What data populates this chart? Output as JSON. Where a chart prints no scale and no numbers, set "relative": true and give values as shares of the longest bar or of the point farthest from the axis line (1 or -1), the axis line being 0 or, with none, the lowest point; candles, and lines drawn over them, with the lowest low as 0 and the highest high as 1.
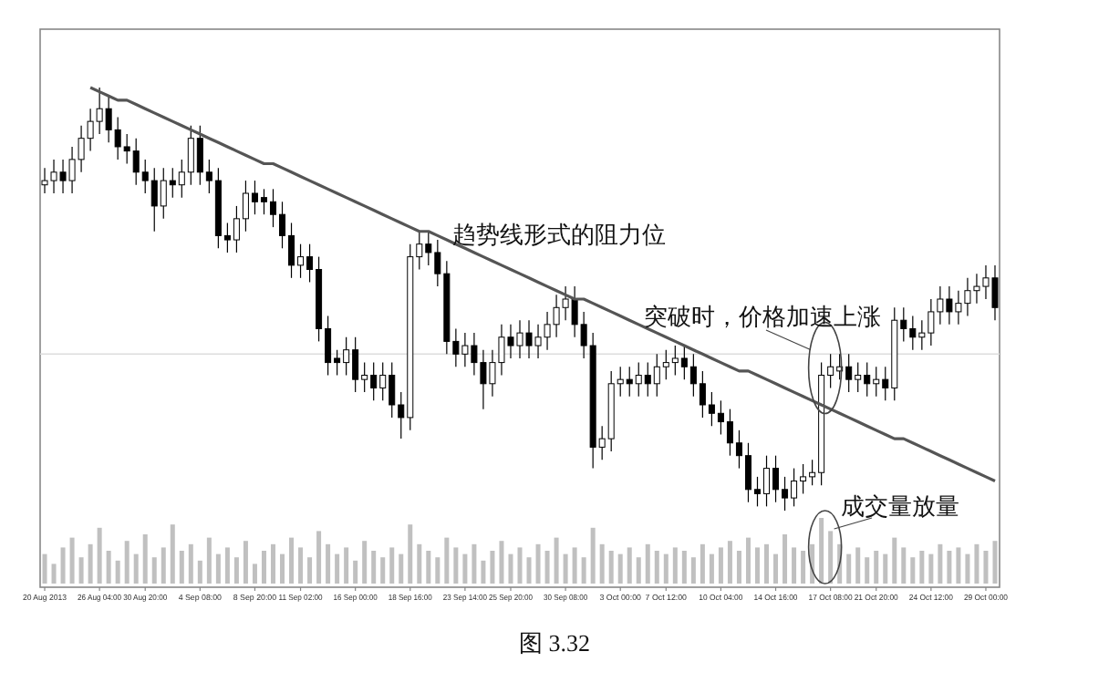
{
  "chart_data": [
    {
      "type": "candlestick",
      "relative": true,
      "grid": false,
      "categories": [
        null,
        null,
        null,
        null,
        null,
        null,
        null,
        null,
        null,
        null,
        null,
        null,
        null,
        null,
        null,
        null,
        null,
        null,
        null,
        null,
        null,
        null,
        null,
        null,
        null,
        null,
        null,
        null,
        null,
        null,
        null,
        null,
        null,
        null,
        null,
        null,
        null,
        null,
        null,
        null,
        null,
        null,
        null,
        null,
        null,
        null,
        null,
        null,
        null,
        null,
        null,
        null,
        null,
        null,
        null,
        null,
        null,
        null,
        null,
        null,
        null,
        null,
        null,
        null,
        null,
        null,
        null,
        null,
        null,
        null,
        null,
        null,
        null,
        null,
        null,
        null,
        null,
        null,
        null,
        null,
        null,
        null,
        null,
        null,
        null,
        null,
        null,
        null,
        null,
        null,
        null,
        null,
        null,
        null,
        null,
        null,
        null,
        null,
        null,
        null,
        null,
        null,
        null,
        null,
        null
      ],
      "series": [
        {
          "type": "candlestick",
          "color": "#000000",
          "ohlc": [
            [
              0.77,
              0.81,
              0.75,
              0.78
            ],
            [
              0.78,
              0.83,
              0.75,
              0.8
            ],
            [
              0.8,
              0.83,
              0.75,
              0.78
            ],
            [
              0.78,
              0.86,
              0.75,
              0.83
            ],
            [
              0.83,
              0.91,
              0.8,
              0.88
            ],
            [
              0.88,
              0.95,
              0.85,
              0.92
            ],
            [
              0.92,
              1.0,
              0.89,
              0.95
            ],
            [
              0.95,
              0.98,
              0.87,
              0.9
            ],
            [
              0.9,
              0.93,
              0.83,
              0.86
            ],
            [
              0.86,
              0.89,
              0.82,
              0.85
            ],
            [
              0.85,
              0.88,
              0.77,
              0.8
            ],
            [
              0.8,
              0.83,
              0.75,
              0.78
            ],
            [
              0.78,
              0.81,
              0.66,
              0.72
            ],
            [
              0.72,
              0.81,
              0.69,
              0.78
            ],
            [
              0.78,
              0.81,
              0.74,
              0.77
            ],
            [
              0.77,
              0.83,
              0.74,
              0.8
            ],
            [
              0.8,
              0.91,
              0.77,
              0.88
            ],
            [
              0.88,
              0.91,
              0.77,
              0.8
            ],
            [
              0.8,
              0.83,
              0.75,
              0.78
            ],
            [
              0.78,
              0.81,
              0.62,
              0.65
            ],
            [
              0.65,
              0.68,
              0.61,
              0.64
            ],
            [
              0.64,
              0.72,
              0.61,
              0.69
            ],
            [
              0.69,
              0.78,
              0.66,
              0.75
            ],
            [
              0.75,
              0.78,
              0.7,
              0.73
            ],
            [
              0.74,
              0.76,
              0.7,
              0.73
            ],
            [
              0.73,
              0.76,
              0.67,
              0.7
            ],
            [
              0.7,
              0.73,
              0.62,
              0.65
            ],
            [
              0.65,
              0.68,
              0.55,
              0.58
            ],
            [
              0.58,
              0.63,
              0.55,
              0.6
            ],
            [
              0.6,
              0.63,
              0.54,
              0.57
            ],
            [
              0.57,
              0.6,
              0.4,
              0.43
            ],
            [
              0.43,
              0.46,
              0.32,
              0.35
            ],
            [
              0.36,
              0.38,
              0.32,
              0.35
            ],
            [
              0.35,
              0.41,
              0.32,
              0.38
            ],
            [
              0.38,
              0.41,
              0.28,
              0.31
            ],
            [
              0.31,
              0.35,
              0.28,
              0.32
            ],
            [
              0.32,
              0.35,
              0.26,
              0.29
            ],
            [
              0.29,
              0.35,
              0.26,
              0.32
            ],
            [
              0.32,
              0.35,
              0.22,
              0.25
            ],
            [
              0.25,
              0.28,
              0.17,
              0.22
            ],
            [
              0.22,
              0.63,
              0.19,
              0.6
            ],
            [
              0.6,
              0.66,
              0.57,
              0.63
            ],
            [
              0.63,
              0.66,
              0.58,
              0.61
            ],
            [
              0.61,
              0.64,
              0.53,
              0.56
            ],
            [
              0.56,
              0.59,
              0.37,
              0.4
            ],
            [
              0.4,
              0.43,
              0.34,
              0.37
            ],
            [
              0.37,
              0.42,
              0.34,
              0.39
            ],
            [
              0.39,
              0.42,
              0.32,
              0.35
            ],
            [
              0.35,
              0.38,
              0.24,
              0.3
            ],
            [
              0.3,
              0.38,
              0.27,
              0.35
            ],
            [
              0.35,
              0.44,
              0.32,
              0.41
            ],
            [
              0.41,
              0.44,
              0.36,
              0.39
            ],
            [
              0.39,
              0.45,
              0.36,
              0.42
            ],
            [
              0.42,
              0.45,
              0.36,
              0.39
            ],
            [
              0.39,
              0.44,
              0.36,
              0.41
            ],
            [
              0.41,
              0.47,
              0.38,
              0.44
            ],
            [
              0.44,
              0.51,
              0.41,
              0.48
            ],
            [
              0.48,
              0.53,
              0.45,
              0.5
            ],
            [
              0.5,
              0.53,
              0.41,
              0.44
            ],
            [
              0.44,
              0.47,
              0.36,
              0.39
            ],
            [
              0.39,
              0.42,
              0.1,
              0.15
            ],
            [
              0.15,
              0.2,
              0.12,
              0.17
            ],
            [
              0.17,
              0.33,
              0.14,
              0.3
            ],
            [
              0.3,
              0.34,
              0.27,
              0.31
            ],
            [
              0.31,
              0.34,
              0.27,
              0.3
            ],
            [
              0.3,
              0.35,
              0.27,
              0.32
            ],
            [
              0.32,
              0.35,
              0.27,
              0.3
            ],
            [
              0.3,
              0.37,
              0.27,
              0.34
            ],
            [
              0.34,
              0.38,
              0.31,
              0.35
            ],
            [
              0.35,
              0.39,
              0.32,
              0.36
            ],
            [
              0.36,
              0.39,
              0.31,
              0.34
            ],
            [
              0.34,
              0.37,
              0.27,
              0.3
            ],
            [
              0.3,
              0.33,
              0.22,
              0.25
            ],
            [
              0.25,
              0.28,
              0.2,
              0.23
            ],
            [
              0.23,
              0.26,
              0.18,
              0.21
            ],
            [
              0.21,
              0.24,
              0.13,
              0.16
            ],
            [
              0.16,
              0.19,
              0.1,
              0.13
            ],
            [
              0.13,
              0.16,
              0.02,
              0.05
            ],
            [
              0.05,
              0.08,
              0.01,
              0.04
            ],
            [
              0.04,
              0.13,
              0.01,
              0.1
            ],
            [
              0.1,
              0.13,
              0.02,
              0.05
            ],
            [
              0.05,
              0.08,
              0.0,
              0.03
            ],
            [
              0.03,
              0.1,
              0.01,
              0.07
            ],
            [
              0.07,
              0.11,
              0.04,
              0.08
            ],
            [
              0.08,
              0.12,
              0.06,
              0.09
            ],
            [
              0.09,
              0.35,
              0.06,
              0.32
            ],
            [
              0.32,
              0.37,
              0.29,
              0.34
            ],
            [
              0.33,
              0.37,
              0.31,
              0.34
            ],
            [
              0.34,
              0.37,
              0.28,
              0.31
            ],
            [
              0.31,
              0.35,
              0.28,
              0.32
            ],
            [
              0.32,
              0.35,
              0.27,
              0.3
            ],
            [
              0.3,
              0.34,
              0.27,
              0.31
            ],
            [
              0.31,
              0.34,
              0.26,
              0.29
            ],
            [
              0.29,
              0.48,
              0.26,
              0.45
            ],
            [
              0.45,
              0.48,
              0.4,
              0.43
            ],
            [
              0.43,
              0.46,
              0.38,
              0.41
            ],
            [
              0.41,
              0.45,
              0.38,
              0.42
            ],
            [
              0.42,
              0.5,
              0.39,
              0.47
            ],
            [
              0.47,
              0.53,
              0.44,
              0.5
            ],
            [
              0.5,
              0.53,
              0.44,
              0.47
            ],
            [
              0.47,
              0.52,
              0.44,
              0.49
            ],
            [
              0.49,
              0.55,
              0.46,
              0.52
            ],
            [
              0.52,
              0.56,
              0.49,
              0.53
            ],
            [
              0.53,
              0.58,
              0.5,
              0.55
            ],
            [
              0.55,
              0.58,
              0.45,
              0.48
            ]
          ]
        },
        {
          "type": "line",
          "color": "#555555",
          "values": [
            null,
            null,
            null,
            null,
            null,
            1.0,
            0.99,
            0.98,
            0.97,
            0.97,
            0.96,
            0.95,
            0.94,
            0.93,
            0.92,
            0.91,
            0.9,
            0.89,
            0.88,
            0.87,
            0.86,
            0.85,
            0.84,
            0.83,
            0.82,
            0.82,
            0.81,
            0.8,
            0.79,
            0.78,
            0.77,
            0.76,
            0.75,
            0.74,
            0.73,
            0.72,
            0.71,
            0.7,
            0.69,
            0.68,
            0.67,
            0.66,
            0.66,
            0.65,
            0.64,
            0.63,
            0.62,
            0.61,
            0.6,
            0.59,
            0.58,
            0.57,
            0.56,
            0.55,
            0.54,
            0.53,
            0.52,
            0.51,
            0.5,
            0.5,
            0.49,
            0.48,
            0.47,
            0.46,
            0.45,
            0.44,
            0.43,
            0.42,
            0.41,
            0.4,
            0.39,
            0.38,
            0.37,
            0.36,
            0.35,
            0.34,
            0.33,
            0.33,
            0.32,
            0.31,
            0.3,
            0.29,
            0.28,
            0.27,
            0.26,
            0.25,
            0.24,
            0.23,
            0.22,
            0.21,
            0.2,
            0.19,
            0.18,
            0.17,
            0.17,
            0.16,
            0.15,
            0.14,
            0.13,
            0.12,
            0.11,
            0.1,
            0.09,
            0.08,
            0.07
          ]
        }
      ],
      "ref_lines": [
        {
          "axis": "y",
          "value": 0.37,
          "color": "#dddddd"
        }
      ],
      "annotations": [
        "趋势线形式的阻力位",
        "突破时，价格加速上涨"
      ]
    },
    {
      "type": "bar",
      "relative": true,
      "grid": false,
      "color": "#c0c0c0",
      "categories": [
        "20 Aug 2013",
        null,
        null,
        null,
        null,
        null,
        "26 Aug 04:00",
        null,
        null,
        null,
        null,
        "30 Aug 20:00",
        null,
        null,
        null,
        null,
        null,
        "4 Sep 08:00",
        null,
        null,
        null,
        null,
        null,
        "8 Sep 20:00",
        null,
        null,
        null,
        null,
        "11 Sep 02:00",
        null,
        null,
        null,
        null,
        null,
        "16 Sep 00:00",
        null,
        null,
        null,
        null,
        null,
        "18 Sep 16:00",
        null,
        null,
        null,
        null,
        null,
        "23 Sep 14:00",
        null,
        null,
        null,
        null,
        "25 Sep 20:00",
        null,
        null,
        null,
        null,
        null,
        "30 Sep 08:00",
        null,
        null,
        null,
        null,
        null,
        "3 Oct 00:00",
        null,
        null,
        null,
        null,
        "7 Oct 12:00",
        null,
        null,
        null,
        null,
        null,
        "10 Oct 04:00",
        null,
        null,
        null,
        null,
        null,
        "14 Oct 16:00",
        null,
        null,
        null,
        null,
        null,
        "17 Oct 08:00",
        null,
        null,
        null,
        null,
        "21 Oct 20:00",
        null,
        null,
        null,
        null,
        null,
        "24 Oct 12:00",
        null,
        null,
        null,
        null,
        null,
        "29 Oct 00:00",
        null
      ],
      "values": [
        0.45,
        0.3,
        0.55,
        0.7,
        0.4,
        0.6,
        0.85,
        0.5,
        0.35,
        0.65,
        0.45,
        0.75,
        0.4,
        0.55,
        0.9,
        0.5,
        0.6,
        0.35,
        0.7,
        0.45,
        0.55,
        0.4,
        0.65,
        0.3,
        0.5,
        0.6,
        0.45,
        0.7,
        0.55,
        0.4,
        0.8,
        0.6,
        0.45,
        0.55,
        0.35,
        0.65,
        0.5,
        0.4,
        0.55,
        0.45,
        0.9,
        0.6,
        0.5,
        0.4,
        0.7,
        0.55,
        0.45,
        0.6,
        0.35,
        0.5,
        0.65,
        0.45,
        0.55,
        0.4,
        0.6,
        0.5,
        0.7,
        0.45,
        0.55,
        0.4,
        0.85,
        0.6,
        0.5,
        0.45,
        0.55,
        0.4,
        0.6,
        0.5,
        0.45,
        0.55,
        0.5,
        0.4,
        0.6,
        0.45,
        0.55,
        0.65,
        0.5,
        0.7,
        0.55,
        0.6,
        0.45,
        0.75,
        0.55,
        0.5,
        0.6,
        1.0,
        0.8,
        0.6,
        0.45,
        0.55,
        0.4,
        0.5,
        0.45,
        0.7,
        0.55,
        0.4,
        0.5,
        0.45,
        0.6,
        0.5,
        0.55,
        0.45,
        0.6,
        0.5,
        0.65
      ],
      "annotations": [
        "成交量放量",
        "图 3.32"
      ]
    }
  ]
}
